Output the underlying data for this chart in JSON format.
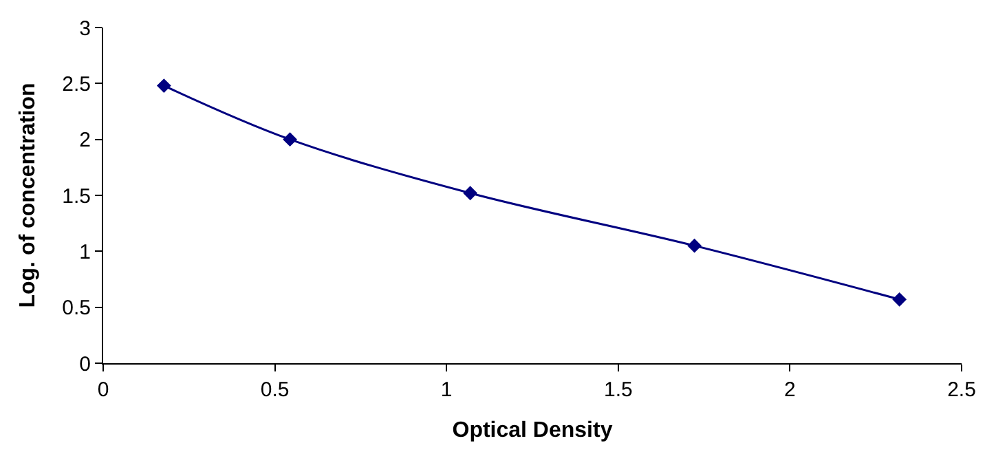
{
  "chart_data": {
    "type": "line",
    "xlabel": "Optical Density",
    "ylabel": "Log. of concentration",
    "x": [
      0.177,
      0.544,
      1.069,
      1.722,
      2.319
    ],
    "series": [
      {
        "color": "#000080",
        "values": [
          2.48,
          2.0,
          1.52,
          1.05,
          0.57
        ]
      }
    ],
    "xlim": [
      0,
      2.5
    ],
    "xticks": [
      0,
      0.5,
      1,
      1.5,
      2,
      2.5
    ],
    "ylim": [
      0,
      3
    ],
    "yticks": [
      0,
      0.5,
      1,
      1.5,
      2,
      2.5,
      3
    ],
    "legend": false,
    "marker": "diamond",
    "line_style": "solid"
  }
}
